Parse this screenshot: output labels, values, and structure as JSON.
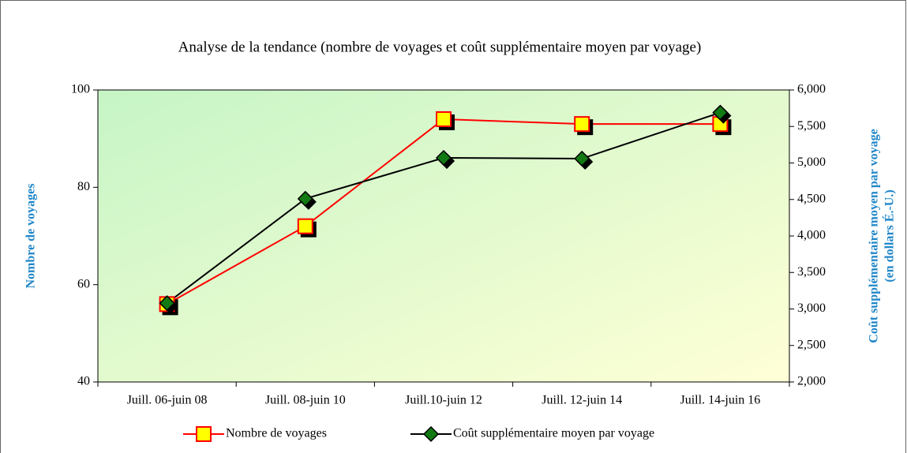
{
  "chart_data": {
    "type": "line",
    "title": "Analyse de la tendance (nombre de voyages et coût supplémentaire moyen par voyage)",
    "ylabel": "Nombre de voyages",
    "y2label": [
      "Coût supplémentaire moyen par voyage",
      "(en dollars É.-U.)"
    ],
    "categories": [
      "Juill. 06-juin 08",
      "Juill. 08-juin 10",
      "Juill.10-juin 12",
      "Juill. 12-juin 14",
      "Juill. 14-juin 16"
    ],
    "series": [
      {
        "name": "Nombre de voyages",
        "color": "#ff0000",
        "marker": "square",
        "marker_color": "#ffff00",
        "values": [
          56,
          72,
          94,
          93,
          93
        ]
      },
      {
        "name": "Coût supplémentaire moyen par voyage",
        "color": "#000000",
        "marker": "diamond",
        "marker_color": "#127a12",
        "axis": "y2",
        "values": [
          3080,
          4510,
          5070,
          5060,
          5690
        ]
      }
    ],
    "ylim": [
      40,
      100
    ],
    "yticks": [
      40,
      60,
      80,
      100
    ],
    "y2lim": [
      2000,
      6000
    ],
    "y2ticks": [
      {
        "value": 2000,
        "label": "2,000"
      },
      {
        "value": 2500,
        "label": "2,500"
      },
      {
        "value": 3000,
        "label": "3,000"
      },
      {
        "value": 3500,
        "label": "3,500"
      },
      {
        "value": 4000,
        "label": "4,000"
      },
      {
        "value": 4500,
        "label": "4,500"
      },
      {
        "value": 5000,
        "label": "5,000"
      },
      {
        "value": 5500,
        "label": "5,500"
      },
      {
        "value": 6000,
        "label": "6,000"
      }
    ],
    "legend": "bottom"
  }
}
